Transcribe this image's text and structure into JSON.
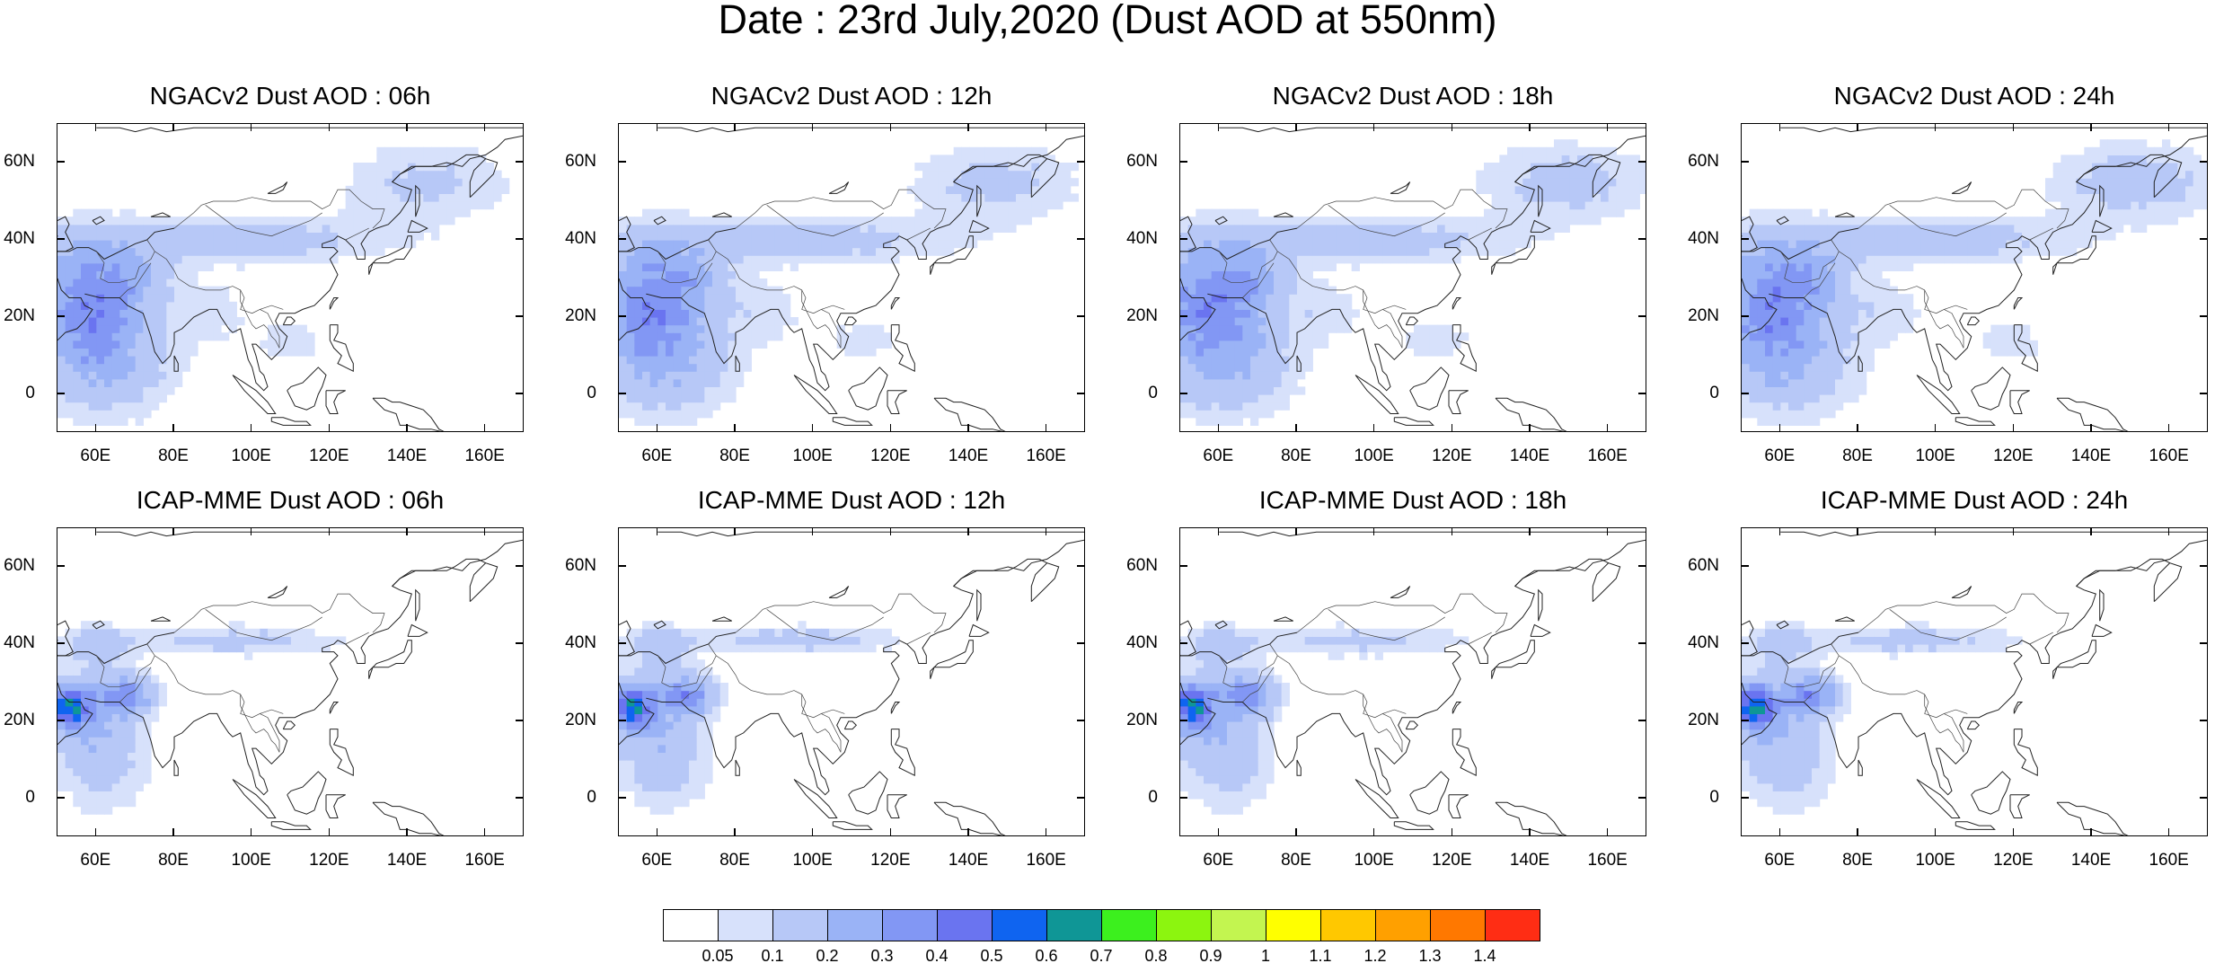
{
  "figure": {
    "title": "Date : 23rd July,2020 (Dust AOD at 550nm)"
  },
  "panels": [
    {
      "title": "NGACv2 Dust AOD : 06h",
      "model": "NGACv2",
      "lead": "06h"
    },
    {
      "title": "NGACv2 Dust AOD : 12h",
      "model": "NGACv2",
      "lead": "12h"
    },
    {
      "title": "NGACv2 Dust AOD : 18h",
      "model": "NGACv2",
      "lead": "18h"
    },
    {
      "title": "NGACv2 Dust AOD : 24h",
      "model": "NGACv2",
      "lead": "24h"
    },
    {
      "title": "ICAP-MME Dust AOD : 06h",
      "model": "ICAP-MME",
      "lead": "06h"
    },
    {
      "title": "ICAP-MME Dust AOD : 12h",
      "model": "ICAP-MME",
      "lead": "12h"
    },
    {
      "title": "ICAP-MME Dust AOD : 18h",
      "model": "ICAP-MME",
      "lead": "18h"
    },
    {
      "title": "ICAP-MME Dust AOD : 24h",
      "model": "ICAP-MME",
      "lead": "24h"
    }
  ],
  "map": {
    "lon_range": [
      50,
      170
    ],
    "lat_range": [
      -10,
      70
    ],
    "lat_ticks": [
      60,
      40,
      20,
      0
    ],
    "lat_labels": [
      "60N",
      "40N",
      "20N",
      "0"
    ],
    "lon_ticks": [
      60,
      80,
      100,
      120,
      140,
      160
    ],
    "lon_labels": [
      "60E",
      "80E",
      "100E",
      "120E",
      "140E",
      "160E"
    ]
  },
  "colorbar": {
    "labels": [
      "0.05",
      "0.1",
      "0.2",
      "0.3",
      "0.4",
      "0.5",
      "0.6",
      "0.7",
      "0.8",
      "0.9",
      "1",
      "1.1",
      "1.2",
      "1.3",
      "1.4"
    ],
    "colors": [
      "#ffffff",
      "#d7e1fb",
      "#b7c8f7",
      "#9ab3f6",
      "#8297f4",
      "#6a74f0",
      "#0f64f0",
      "#0f9696",
      "#3cf01e",
      "#8cf50f",
      "#c3f550",
      "#ffff00",
      "#ffc800",
      "#ffa000",
      "#ff7800",
      "#ff2d14"
    ]
  }
}
